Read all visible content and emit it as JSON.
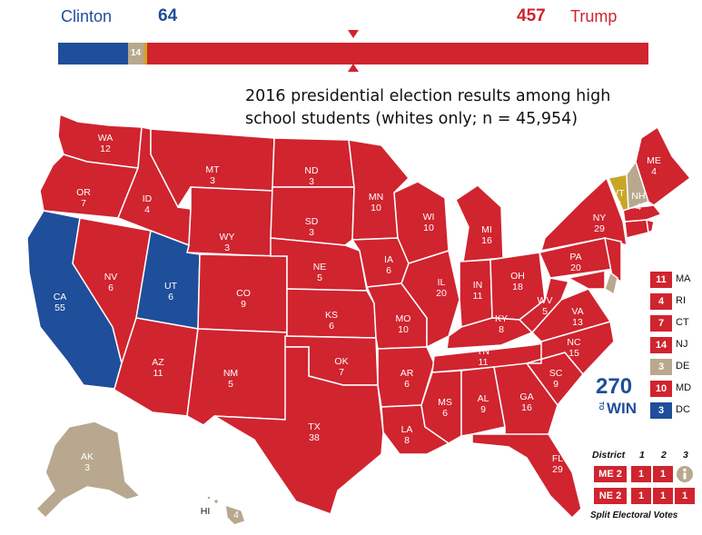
{
  "header": {
    "dem_name": "Clinton",
    "dem_votes": "64",
    "rep_votes": "457",
    "rep_name": "Trump",
    "tossup_votes": "14"
  },
  "bar": {
    "total": 538,
    "dem": 64,
    "tossup": 14,
    "yellow": 3,
    "rep": 457
  },
  "subtitle": {
    "line1": "2016 presidential election results among high",
    "line2": "school students (whites only; n = 45,954)"
  },
  "colors": {
    "rep": "#d0242f",
    "dem": "#1f4e9a",
    "tossup": "#b7a88f",
    "yellow": "#c9a628"
  },
  "states": {
    "WA": "12",
    "OR": "7",
    "CA": "55",
    "NV": "6",
    "ID": "4",
    "MT": "3",
    "WY": "3",
    "UT": "6",
    "AZ": "11",
    "CO": "9",
    "NM": "5",
    "ND": "3",
    "SD": "3",
    "NE": "5",
    "KS": "6",
    "OK": "7",
    "TX": "38",
    "MN": "10",
    "IA": "6",
    "MO": "10",
    "AR": "6",
    "LA": "8",
    "WI": "10",
    "IL": "20",
    "MI": "16",
    "IN": "11",
    "OH": "18",
    "KY": "8",
    "TN": "11",
    "MS": "6",
    "AL": "9",
    "GA": "16",
    "FL": "29",
    "SC": "9",
    "NC": "15",
    "VA": "13",
    "WV": "5",
    "PA": "20",
    "NY": "29",
    "VT": "3",
    "NH": "4",
    "ME": "4",
    "AK": "3",
    "HI": "4"
  },
  "hi_label": "HI",
  "legend": [
    {
      "value": "11",
      "name": "MA",
      "color": "rep"
    },
    {
      "value": "4",
      "name": "RI",
      "color": "rep"
    },
    {
      "value": "7",
      "name": "CT",
      "color": "rep"
    },
    {
      "value": "14",
      "name": "NJ",
      "color": "rep"
    },
    {
      "value": "3",
      "name": "DE",
      "color": "tossup"
    },
    {
      "value": "10",
      "name": "MD",
      "color": "rep"
    },
    {
      "value": "3",
      "name": "DC",
      "color": "dem"
    }
  ],
  "logo": {
    "top": "270",
    "small": "TO",
    "bottom": "WIN"
  },
  "split": {
    "district_label": "District",
    "cols": [
      "1",
      "2",
      "3"
    ],
    "rows": [
      {
        "name": "ME 2",
        "values": [
          "1",
          "1"
        ]
      },
      {
        "name": "NE 2",
        "values": [
          "1",
          "1",
          "1"
        ]
      }
    ],
    "footer": "Split Electoral Votes",
    "info_icon": "info-icon"
  }
}
